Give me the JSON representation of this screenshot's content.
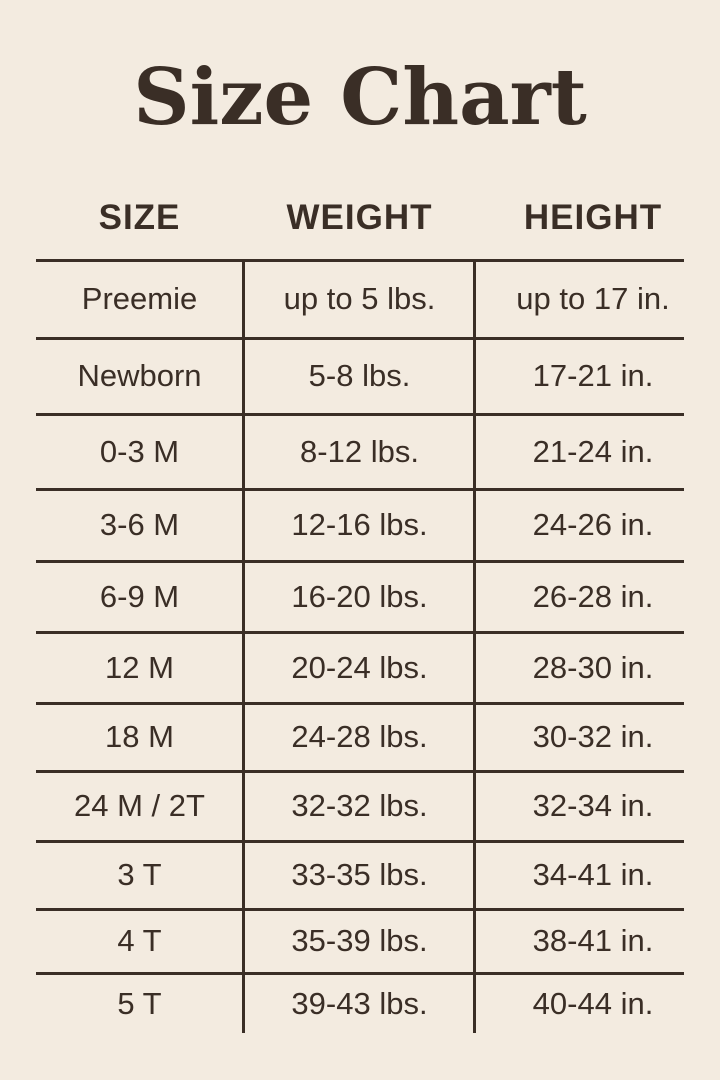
{
  "title": "Size Chart",
  "headers": [
    "SIZE",
    "WEIGHT",
    "HEIGHT"
  ],
  "rows": [
    {
      "size": "Preemie",
      "weight": "up to 5 lbs.",
      "height": "up to 17 in."
    },
    {
      "size": "Newborn",
      "weight": "5-8 lbs.",
      "height": "17-21 in."
    },
    {
      "size": "0-3 M",
      "weight": "8-12 lbs.",
      "height": "21-24 in."
    },
    {
      "size": "3-6 M",
      "weight": "12-16 lbs.",
      "height": "24-26 in."
    },
    {
      "size": "6-9 M",
      "weight": "16-20 lbs.",
      "height": "26-28 in."
    },
    {
      "size": "12 M",
      "weight": "20-24 lbs.",
      "height": "28-30 in."
    },
    {
      "size": "18 M",
      "weight": "24-28 lbs.",
      "height": "30-32 in."
    },
    {
      "size": "24 M / 2T",
      "weight": "32-32 lbs.",
      "height": "32-34 in."
    },
    {
      "size": "3 T",
      "weight": "33-35 lbs.",
      "height": "34-41 in."
    },
    {
      "size": "4 T",
      "weight": "35-39 lbs.",
      "height": "38-41 in."
    },
    {
      "size": "5 T",
      "weight": "39-43 lbs.",
      "height": "40-44 in."
    }
  ],
  "colors": {
    "background": "#f3ebe0",
    "text": "#3a2e26"
  }
}
